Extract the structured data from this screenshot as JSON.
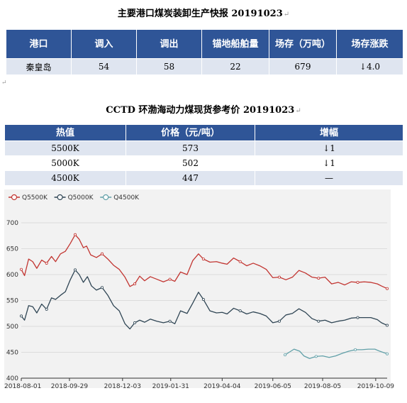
{
  "title1": "主要港口煤炭装卸生产快报 20191023",
  "table1": {
    "headers": [
      "港口",
      "调入",
      "调出",
      "锚地船舶量",
      "场存（万吨）",
      "场存涨跌"
    ],
    "row": [
      "秦皇岛",
      "54",
      "58",
      "22",
      "679",
      "↓4.0"
    ]
  },
  "title2": "CCTD 环渤海动力煤现货参考价 20191023",
  "table2": {
    "headers": [
      "热值",
      "价格（元/吨）",
      "增幅"
    ],
    "rows": [
      [
        "5500K",
        "573",
        "↓1"
      ],
      [
        "5000K",
        "502",
        "↓1"
      ],
      [
        "4500K",
        "447",
        "—"
      ]
    ]
  },
  "colors": {
    "header_bg": "#2f5597",
    "row_bg": "#dfe5f0",
    "q5500": "#c23531",
    "q5000": "#2f4554",
    "q4500": "#61a0a8"
  },
  "chart_data": {
    "type": "line",
    "title": "",
    "xlabel": "",
    "ylabel": "",
    "ylim": [
      400,
      700
    ],
    "yticks": [
      400,
      450,
      500,
      550,
      600,
      650,
      700
    ],
    "xlim": [
      "2018-08-01",
      "2019-10-23"
    ],
    "xticks": [
      "2018-08-01",
      "2018-09-29",
      "2018-12-03",
      "2019-01-31",
      "2019-04-04",
      "2019-06-05",
      "2019-08-05",
      "2019-10-09"
    ],
    "legend_position": "top-left",
    "grid": true,
    "series": [
      {
        "name": "Q5500K",
        "color": "#c23531",
        "points": [
          [
            "2018-08-01",
            610
          ],
          [
            "2018-08-05",
            598
          ],
          [
            "2018-08-10",
            630
          ],
          [
            "2018-08-15",
            625
          ],
          [
            "2018-08-20",
            612
          ],
          [
            "2018-08-26",
            628
          ],
          [
            "2018-09-01",
            622
          ],
          [
            "2018-09-07",
            635
          ],
          [
            "2018-09-12",
            625
          ],
          [
            "2018-09-18",
            640
          ],
          [
            "2018-09-24",
            645
          ],
          [
            "2018-09-30",
            660
          ],
          [
            "2018-10-06",
            677
          ],
          [
            "2018-10-11",
            668
          ],
          [
            "2018-10-16",
            652
          ],
          [
            "2018-10-20",
            655
          ],
          [
            "2018-10-25",
            638
          ],
          [
            "2018-11-01",
            633
          ],
          [
            "2018-11-08",
            640
          ],
          [
            "2018-11-15",
            630
          ],
          [
            "2018-11-22",
            618
          ],
          [
            "2018-11-29",
            610
          ],
          [
            "2018-12-06",
            595
          ],
          [
            "2018-12-12",
            577
          ],
          [
            "2018-12-18",
            582
          ],
          [
            "2018-12-24",
            597
          ],
          [
            "2018-12-30",
            588
          ],
          [
            "2019-01-06",
            596
          ],
          [
            "2019-01-14",
            591
          ],
          [
            "2019-01-22",
            586
          ],
          [
            "2019-01-30",
            591
          ],
          [
            "2019-02-05",
            587
          ],
          [
            "2019-02-12",
            605
          ],
          [
            "2019-02-20",
            600
          ],
          [
            "2019-02-27",
            627
          ],
          [
            "2019-03-06",
            640
          ],
          [
            "2019-03-12",
            630
          ],
          [
            "2019-03-20",
            624
          ],
          [
            "2019-03-28",
            625
          ],
          [
            "2019-04-04",
            622
          ],
          [
            "2019-04-10",
            620
          ],
          [
            "2019-04-18",
            632
          ],
          [
            "2019-04-26",
            625
          ],
          [
            "2019-05-04",
            617
          ],
          [
            "2019-05-12",
            622
          ],
          [
            "2019-05-20",
            617
          ],
          [
            "2019-05-28",
            610
          ],
          [
            "2019-06-05",
            594
          ],
          [
            "2019-06-13",
            595
          ],
          [
            "2019-06-21",
            590
          ],
          [
            "2019-06-29",
            595
          ],
          [
            "2019-07-07",
            608
          ],
          [
            "2019-07-15",
            603
          ],
          [
            "2019-07-23",
            595
          ],
          [
            "2019-07-31",
            593
          ],
          [
            "2019-08-08",
            595
          ],
          [
            "2019-08-16",
            582
          ],
          [
            "2019-08-24",
            585
          ],
          [
            "2019-09-01",
            580
          ],
          [
            "2019-09-09",
            586
          ],
          [
            "2019-09-17",
            585
          ],
          [
            "2019-09-25",
            586
          ],
          [
            "2019-10-03",
            585
          ],
          [
            "2019-10-11",
            582
          ],
          [
            "2019-10-16",
            578
          ],
          [
            "2019-10-23",
            573
          ]
        ]
      },
      {
        "name": "Q5000K",
        "color": "#2f4554",
        "points": [
          [
            "2018-08-01",
            520
          ],
          [
            "2018-08-05",
            512
          ],
          [
            "2018-08-10",
            540
          ],
          [
            "2018-08-15",
            538
          ],
          [
            "2018-08-20",
            526
          ],
          [
            "2018-08-26",
            543
          ],
          [
            "2018-09-01",
            533
          ],
          [
            "2018-09-07",
            555
          ],
          [
            "2018-09-12",
            552
          ],
          [
            "2018-09-18",
            560
          ],
          [
            "2018-09-24",
            567
          ],
          [
            "2018-09-30",
            590
          ],
          [
            "2018-10-06",
            609
          ],
          [
            "2018-10-11",
            600
          ],
          [
            "2018-10-16",
            585
          ],
          [
            "2018-10-21",
            596
          ],
          [
            "2018-10-26",
            578
          ],
          [
            "2018-11-01",
            570
          ],
          [
            "2018-11-08",
            575
          ],
          [
            "2018-11-15",
            560
          ],
          [
            "2018-11-22",
            540
          ],
          [
            "2018-11-29",
            530
          ],
          [
            "2018-12-06",
            505
          ],
          [
            "2018-12-12",
            495
          ],
          [
            "2018-12-18",
            507
          ],
          [
            "2018-12-24",
            512
          ],
          [
            "2018-12-30",
            508
          ],
          [
            "2019-01-06",
            514
          ],
          [
            "2019-01-14",
            510
          ],
          [
            "2019-01-22",
            507
          ],
          [
            "2019-01-30",
            510
          ],
          [
            "2019-02-05",
            505
          ],
          [
            "2019-02-12",
            530
          ],
          [
            "2019-02-20",
            525
          ],
          [
            "2019-02-27",
            545
          ],
          [
            "2019-03-06",
            566
          ],
          [
            "2019-03-12",
            552
          ],
          [
            "2019-03-20",
            530
          ],
          [
            "2019-03-28",
            526
          ],
          [
            "2019-04-04",
            527
          ],
          [
            "2019-04-10",
            524
          ],
          [
            "2019-04-18",
            535
          ],
          [
            "2019-04-26",
            530
          ],
          [
            "2019-05-04",
            524
          ],
          [
            "2019-05-12",
            528
          ],
          [
            "2019-05-20",
            525
          ],
          [
            "2019-05-28",
            520
          ],
          [
            "2019-06-05",
            507
          ],
          [
            "2019-06-13",
            510
          ],
          [
            "2019-06-21",
            522
          ],
          [
            "2019-06-29",
            525
          ],
          [
            "2019-07-07",
            534
          ],
          [
            "2019-07-15",
            527
          ],
          [
            "2019-07-23",
            515
          ],
          [
            "2019-07-31",
            510
          ],
          [
            "2019-08-08",
            512
          ],
          [
            "2019-08-16",
            507
          ],
          [
            "2019-08-24",
            510
          ],
          [
            "2019-09-01",
            512
          ],
          [
            "2019-09-09",
            516
          ],
          [
            "2019-09-17",
            517
          ],
          [
            "2019-09-25",
            517
          ],
          [
            "2019-10-03",
            517
          ],
          [
            "2019-10-11",
            513
          ],
          [
            "2019-10-16",
            507
          ],
          [
            "2019-10-23",
            502
          ]
        ]
      },
      {
        "name": "Q4500K",
        "color": "#61a0a8",
        "points": [
          [
            "2019-06-20",
            445
          ],
          [
            "2019-06-25",
            450
          ],
          [
            "2019-07-01",
            456
          ],
          [
            "2019-07-08",
            452
          ],
          [
            "2019-07-13",
            443
          ],
          [
            "2019-07-20",
            438
          ],
          [
            "2019-07-28",
            442
          ],
          [
            "2019-08-05",
            443
          ],
          [
            "2019-08-13",
            440
          ],
          [
            "2019-08-21",
            443
          ],
          [
            "2019-08-29",
            448
          ],
          [
            "2019-09-06",
            452
          ],
          [
            "2019-09-14",
            455
          ],
          [
            "2019-09-22",
            455
          ],
          [
            "2019-09-30",
            456
          ],
          [
            "2019-10-08",
            456
          ],
          [
            "2019-10-14",
            452
          ],
          [
            "2019-10-23",
            447
          ]
        ]
      }
    ]
  }
}
